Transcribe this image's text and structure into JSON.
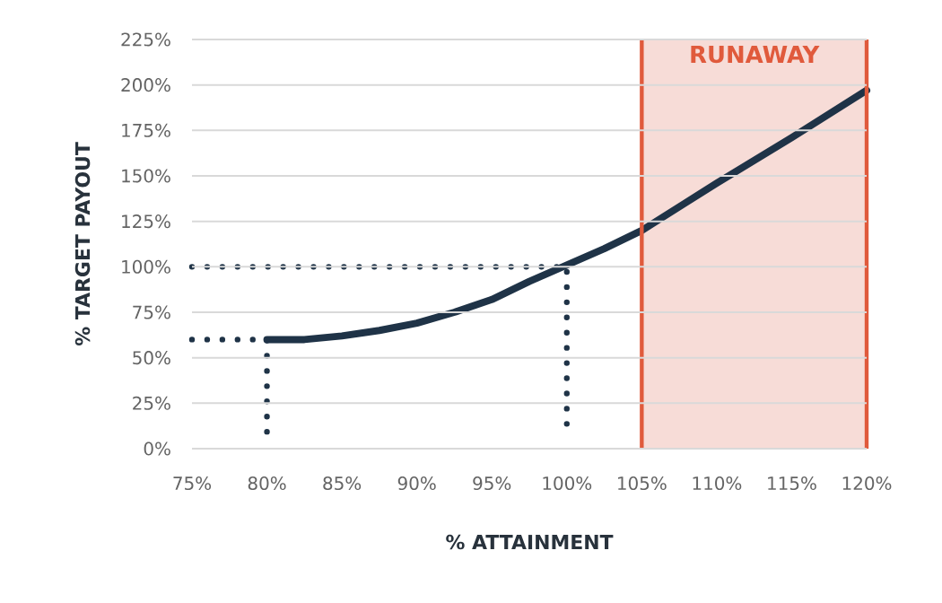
{
  "chart_data": {
    "type": "line",
    "xlabel": "% ATTAINMENT",
    "ylabel": "% TARGET PAYOUT",
    "xlim": [
      75,
      120
    ],
    "ylim": [
      0,
      225
    ],
    "xticks": [
      {
        "value": 75,
        "label": "75%"
      },
      {
        "value": 80,
        "label": "80%"
      },
      {
        "value": 85,
        "label": "85%"
      },
      {
        "value": 90,
        "label": "90%"
      },
      {
        "value": 95,
        "label": "95%"
      },
      {
        "value": 100,
        "label": "100%"
      },
      {
        "value": 105,
        "label": "105%"
      },
      {
        "value": 110,
        "label": "110%"
      },
      {
        "value": 115,
        "label": "115%"
      },
      {
        "value": 120,
        "label": "120%"
      }
    ],
    "yticks": [
      {
        "value": 0,
        "label": "0%"
      },
      {
        "value": 25,
        "label": "25%"
      },
      {
        "value": 50,
        "label": "50%"
      },
      {
        "value": 75,
        "label": "75%"
      },
      {
        "value": 100,
        "label": "100%"
      },
      {
        "value": 125,
        "label": "125%"
      },
      {
        "value": 150,
        "label": "150%"
      },
      {
        "value": 175,
        "label": "175%"
      },
      {
        "value": 200,
        "label": "200%"
      },
      {
        "value": 225,
        "label": "225%"
      }
    ],
    "grid": "y",
    "marker": "none",
    "series": [
      {
        "color": "#1f3347",
        "line_style": "solid",
        "x": [
          80,
          82.5,
          85,
          87.5,
          90,
          92.5,
          95,
          97.5,
          100,
          102.5,
          105,
          110,
          115,
          120
        ],
        "values": [
          60,
          60,
          62,
          65,
          69,
          75,
          82,
          92,
          101,
          110,
          120,
          146,
          171,
          197
        ]
      },
      {
        "color": "#1f3347",
        "line_style": "dotted",
        "x": [
          75,
          100,
          100
        ],
        "values": [
          100,
          100,
          11
        ]
      },
      {
        "color": "#1f3347",
        "line_style": "dotted",
        "x": [
          75,
          80,
          80
        ],
        "values": [
          60,
          60,
          6
        ]
      }
    ],
    "bands": [
      {
        "axis": "x",
        "from": 105,
        "to": 120,
        "label": "RUNAWAY",
        "color": "#f7dcd7"
      }
    ],
    "ref_lines": [
      {
        "axis": "x",
        "value": 105,
        "color": "#e05a3c"
      },
      {
        "axis": "x",
        "value": 120,
        "color": "#e05a3c"
      }
    ]
  }
}
